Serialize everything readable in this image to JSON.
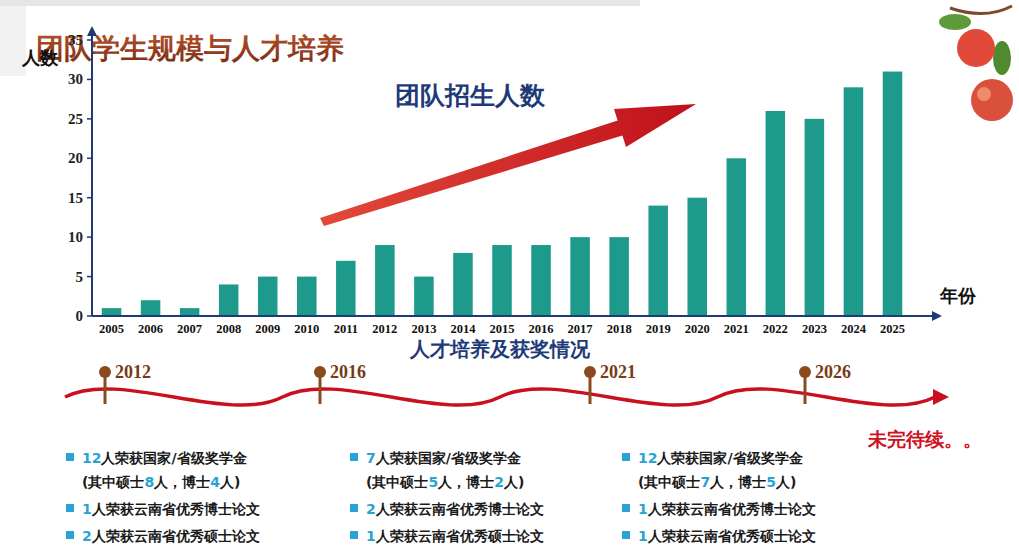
{
  "header": {
    "title": "团队学生规模与人才培养"
  },
  "chart_data": {
    "type": "bar",
    "title": "团队招生人数",
    "x_label": "年份",
    "y_label": "人数",
    "categories": [
      "2005",
      "2006",
      "2007",
      "2008",
      "2009",
      "2010",
      "2011",
      "2012",
      "2013",
      "2014",
      "2015",
      "2016",
      "2017",
      "2018",
      "2019",
      "2020",
      "2021",
      "2022",
      "2023",
      "2024",
      "2025"
    ],
    "values": [
      1,
      2,
      1,
      4,
      5,
      5,
      7,
      9,
      5,
      8,
      9,
      9,
      10,
      10,
      14,
      15,
      20,
      26,
      25,
      29,
      31
    ],
    "color": "#1e9a8c",
    "ylim": [
      0,
      35
    ],
    "yticks": [
      0,
      5,
      10,
      15,
      20,
      25,
      30,
      35
    ],
    "grid": false,
    "data_labels": false
  },
  "awards": {
    "title": "人才培养及获奖情况",
    "columns": [
      {
        "lines": [
          [
            {
              "highlight": "12"
            },
            "人荣获国家/省级奖学金"
          ],
          [
            "(其中硕士",
            {
              "highlight": "8"
            },
            "人，博士",
            {
              "highlight": "4"
            },
            "人)"
          ],
          [
            {
              "highlight": "1"
            },
            "人荣获云南省优秀博士论文"
          ],
          [
            {
              "highlight": "2"
            },
            "人荣获云南省优秀硕士论文"
          ]
        ]
      },
      {
        "lines": [
          [
            {
              "highlight": "7"
            },
            "人荣获国家/省级奖学金"
          ],
          [
            "(其中硕士",
            {
              "highlight": "5"
            },
            "人，博士",
            {
              "highlight": "2"
            },
            "人)"
          ],
          [
            {
              "highlight": "2"
            },
            "人荣获云南省优秀博士论文"
          ],
          [
            {
              "highlight": "1"
            },
            "人荣获云南省优秀硕士论文"
          ]
        ]
      },
      {
        "lines": [
          [
            {
              "highlight": "12"
            },
            "人荣获国家/省级奖学金"
          ],
          [
            "(其中硕士",
            {
              "highlight": "7"
            },
            "人，博士",
            {
              "highlight": "5"
            },
            "人)"
          ],
          [
            {
              "highlight": "1"
            },
            "人荣获云南省优秀博士论文"
          ],
          [
            {
              "highlight": "1"
            },
            "人荣获云南省优秀硕士论文"
          ]
        ]
      }
    ]
  },
  "timeline": {
    "years": [
      "2012",
      "2016",
      "2021",
      "2026"
    ],
    "end_text": "未完待续。。"
  }
}
